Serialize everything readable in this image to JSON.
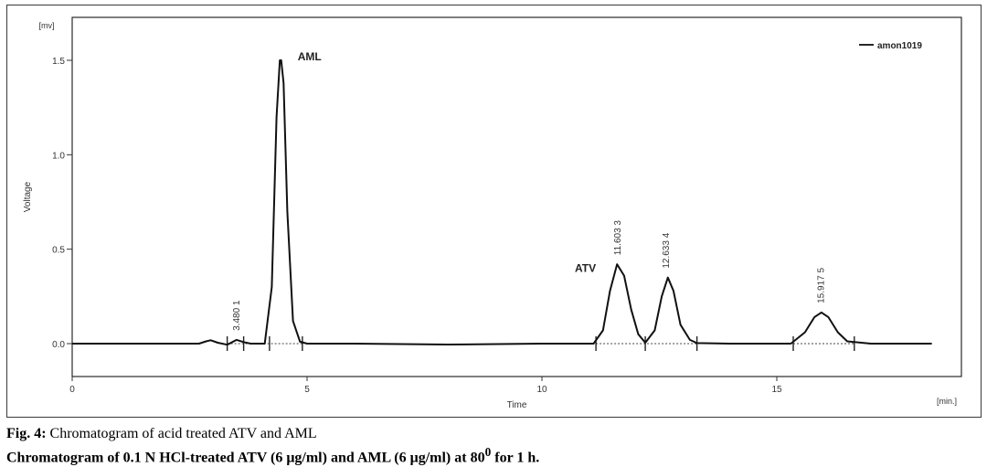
{
  "chart_data": {
    "type": "line",
    "title": "",
    "xlabel": "Time",
    "ylabel": "Voltage",
    "y_unit": "[mv]",
    "x_unit": "[min.]",
    "xlim": [
      0,
      18
    ],
    "ylim": [
      -0.18,
      1.75
    ],
    "x_ticks": [
      "0",
      "5",
      "10",
      "15"
    ],
    "x_tick_values": [
      0,
      5,
      10,
      15
    ],
    "y_ticks": [
      "0.0",
      "0.5",
      "1.0",
      "1.5"
    ],
    "y_tick_values": [
      0.0,
      0.5,
      1.0,
      1.5
    ],
    "legend": {
      "position": "top-right",
      "entries": [
        "amon1019"
      ]
    },
    "series": [
      {
        "name": "amon1019",
        "x": [
          0.0,
          2.7,
          2.85,
          2.95,
          3.1,
          3.3,
          3.5,
          3.65,
          3.8,
          4.1,
          4.25,
          4.35,
          4.42,
          4.45,
          4.5,
          4.58,
          4.7,
          4.85,
          5.0,
          6.0,
          8.0,
          10.0,
          11.1,
          11.3,
          11.45,
          11.6,
          11.75,
          11.9,
          12.05,
          12.2,
          12.4,
          12.55,
          12.68,
          12.8,
          12.95,
          13.15,
          13.3,
          14.0,
          15.3,
          15.6,
          15.8,
          15.95,
          16.1,
          16.3,
          16.5,
          17.0,
          18.3
        ],
        "y": [
          0.0,
          0.0,
          0.012,
          0.018,
          0.005,
          -0.006,
          0.02,
          0.008,
          0.0,
          0.0,
          0.3,
          1.2,
          1.5,
          1.5,
          1.38,
          0.7,
          0.12,
          0.01,
          0.0,
          0.0,
          -0.005,
          0.0,
          0.0,
          0.07,
          0.28,
          0.42,
          0.36,
          0.18,
          0.05,
          0.005,
          0.07,
          0.25,
          0.35,
          0.28,
          0.1,
          0.02,
          0.003,
          0.0,
          0.0,
          0.06,
          0.14,
          0.165,
          0.14,
          0.06,
          0.012,
          0.0,
          0.0
        ]
      }
    ],
    "peak_labels": [
      {
        "label": "3.480 1",
        "x": 3.48,
        "y": 0.02
      },
      {
        "label": "11.603 3",
        "x": 11.6,
        "y": 0.42
      },
      {
        "label": "12.633 4",
        "x": 12.63,
        "y": 0.35
      },
      {
        "label": "15.917 5",
        "x": 15.92,
        "y": 0.165
      }
    ],
    "annotations": [
      {
        "text": "AML",
        "x": 4.8,
        "y": 1.5
      },
      {
        "text": "ATV",
        "x": 10.7,
        "y": 0.38
      }
    ]
  },
  "caption": {
    "label": "Fig. 4:",
    "title": " Chromatogram of acid treated ATV and AML",
    "line2_part1": "Chromatogram of 0.1 N HCl-treated ATV (6 μg/ml) and AML (6 μg/ml) at 80",
    "line2_sup": "0",
    "line2_part2": " for 1 h."
  }
}
